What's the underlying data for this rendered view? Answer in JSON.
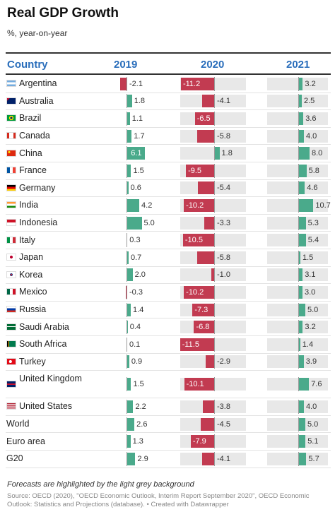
{
  "title": "Real GDP Growth",
  "subtitle": "%, year-on-year",
  "note": "Forecasts are highlighted by the light grey background",
  "source": "Source: OECD (2020), \"OECD Economic Outlook, Interim Report September 2020\", OECD Economic Outlook: Statistics and Projections (database). • Created with Datawrapper",
  "colors": {
    "positive": "#4aaa8b",
    "negative": "#c23b51",
    "forecast_bg": "#e8e8e8",
    "header": "#2a6ebb"
  },
  "chart_data": {
    "type": "bar",
    "column_header": "Country",
    "years": [
      "2019",
      "2020",
      "2021"
    ],
    "forecast_years": [
      "2020",
      "2021"
    ],
    "categories": [
      "Argentina",
      "Australia",
      "Brazil",
      "Canada",
      "China",
      "France",
      "Germany",
      "India",
      "Indonesia",
      "Italy",
      "Japan",
      "Korea",
      "Mexico",
      "Russia",
      "Saudi Arabia",
      "South Africa",
      "Turkey",
      "United Kingdom",
      "United States",
      "World",
      "Euro area",
      "G20"
    ],
    "flags": [
      "argentina-flag-icon",
      "australia-flag-icon",
      "brazil-flag-icon",
      "canada-flag-icon",
      "china-flag-icon",
      "france-flag-icon",
      "germany-flag-icon",
      "india-flag-icon",
      "indonesia-flag-icon",
      "italy-flag-icon",
      "japan-flag-icon",
      "korea-flag-icon",
      "mexico-flag-icon",
      "russia-flag-icon",
      "saudi-arabia-flag-icon",
      "south-africa-flag-icon",
      "turkey-flag-icon",
      "united-kingdom-flag-icon",
      "united-states-flag-icon",
      "",
      "",
      ""
    ],
    "series": [
      {
        "name": "2019",
        "values": [
          -2.1,
          1.8,
          1.1,
          1.7,
          6.1,
          1.5,
          0.6,
          4.2,
          5.0,
          0.3,
          0.7,
          2.0,
          -0.3,
          1.4,
          0.4,
          0.1,
          0.9,
          1.5,
          2.2,
          2.6,
          1.3,
          2.9
        ]
      },
      {
        "name": "2020",
        "values": [
          -11.2,
          -4.1,
          -6.5,
          -5.8,
          1.8,
          -9.5,
          -5.4,
          -10.2,
          -3.3,
          -10.5,
          -5.8,
          -1.0,
          -10.2,
          -7.3,
          -6.8,
          -11.5,
          -2.9,
          -10.1,
          -3.8,
          -4.5,
          -7.9,
          -4.1
        ]
      },
      {
        "name": "2021",
        "values": [
          3.2,
          2.5,
          3.6,
          4.0,
          8.0,
          5.8,
          4.6,
          10.7,
          5.3,
          5.4,
          1.5,
          3.1,
          3.0,
          5.0,
          3.2,
          1.4,
          3.9,
          7.6,
          4.0,
          5.0,
          5.1,
          5.7
        ]
      }
    ],
    "value_labels": [
      [
        "-2.1",
        "1.8",
        "1.1",
        "1.7",
        "6.1",
        "1.5",
        "0.6",
        "4.2",
        "5.0",
        "0.3",
        "0.7",
        "2.0",
        "-0.3",
        "1.4",
        "0.4",
        "0.1",
        "0.9",
        "1.5",
        "2.2",
        "2.6",
        "1.3",
        "2.9"
      ],
      [
        "-11.2",
        "-4.1",
        "-6.5",
        "-5.8",
        "1.8",
        "-9.5",
        "-5.4",
        "-10.2",
        "-3.3",
        "-10.5",
        "-5.8",
        "-1.0",
        "-10.2",
        "-7.3",
        "-6.8",
        "-11.5",
        "-2.9",
        "-10.1",
        "-3.8",
        "-4.5",
        "-7.9",
        "-4.1"
      ],
      [
        "3.2",
        "2.5",
        "3.6",
        "4.0",
        "8.0",
        "5.8",
        "4.6",
        "10.7",
        "5.3",
        "5.4",
        "1.5",
        "3.1",
        "3.0",
        "5.0",
        "3.2",
        "1.4",
        "3.9",
        "7.6",
        "4.0",
        "5.0",
        "5.1",
        "5.7"
      ]
    ],
    "xlim": [
      -12,
      12
    ]
  }
}
